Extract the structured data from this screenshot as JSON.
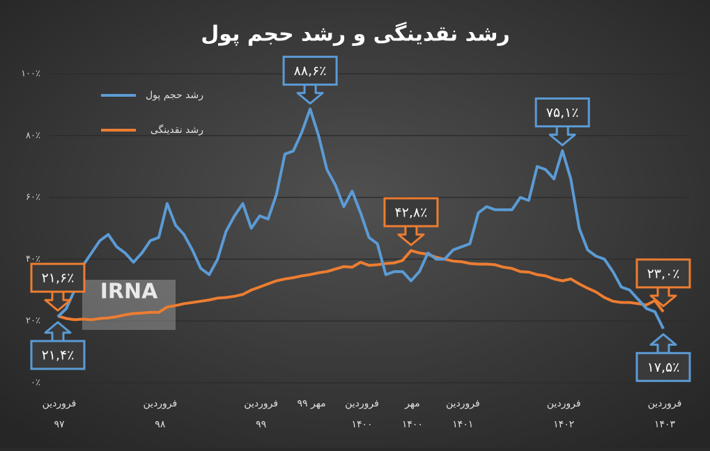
{
  "chart_data": {
    "type": "line",
    "title": "رشد نقدینگی و رشد حجم پول",
    "watermark": "IRNA",
    "categories": [
      "فروردین\n۹۷",
      null,
      null,
      null,
      null,
      null,
      null,
      null,
      null,
      null,
      null,
      null,
      "فروردین\n۹۸",
      null,
      null,
      null,
      null,
      null,
      null,
      null,
      null,
      null,
      null,
      null,
      "فروردین\n۹۹",
      null,
      null,
      null,
      null,
      null,
      "مهر ۹۹",
      null,
      null,
      null,
      null,
      null,
      "فروردین\n۱۴۰۰",
      null,
      null,
      null,
      null,
      null,
      "مهر\n۱۴۰۰",
      null,
      null,
      null,
      null,
      null,
      "فروردین\n۱۴۰۱",
      null,
      null,
      null,
      null,
      null,
      null,
      null,
      null,
      null,
      null,
      null,
      "فروردین\n۱۴۰۲",
      null,
      null,
      null,
      null,
      null,
      null,
      null,
      null,
      null,
      null,
      null,
      "فروردین\n۱۴۰۳"
    ],
    "series": [
      {
        "name": "رشد حجم پول",
        "color": "#5b9bd5",
        "values": [
          21.4,
          24,
          30,
          38,
          42,
          46,
          48,
          44,
          42,
          39,
          42,
          46,
          47,
          58,
          51,
          48,
          43,
          37,
          35,
          40,
          49,
          54,
          58,
          50,
          54,
          53,
          61,
          74,
          75,
          81,
          88.6,
          80,
          69,
          64,
          57,
          62,
          55,
          47,
          45,
          35,
          36,
          36,
          33,
          36,
          42,
          40,
          40,
          43,
          44,
          45,
          55,
          57,
          56,
          56,
          56,
          60,
          59,
          70,
          69,
          66,
          75.1,
          66,
          50,
          43,
          41,
          40,
          36,
          31,
          30,
          27,
          24,
          23,
          17.5
        ],
        "value_labels": [
          "۲۱,۴٪",
          null,
          null,
          null,
          null,
          null,
          null,
          null,
          null,
          null,
          null,
          null,
          null,
          null,
          null,
          null,
          null,
          null,
          null,
          null,
          null,
          null,
          null,
          null,
          null,
          null,
          null,
          null,
          null,
          null,
          "۸۸,۶٪",
          null,
          null,
          null,
          null,
          null,
          null,
          null,
          null,
          null,
          null,
          null,
          null,
          null,
          null,
          null,
          null,
          null,
          null,
          null,
          null,
          null,
          null,
          null,
          null,
          null,
          null,
          null,
          null,
          null,
          "۷۵,۱٪",
          null,
          null,
          null,
          null,
          null,
          null,
          null,
          null,
          null,
          null,
          null,
          "۱۷,۵٪"
        ]
      },
      {
        "name": "رشد نقدینگی",
        "color": "#ed7d31",
        "values": [
          21.6,
          20.8,
          20.4,
          20.6,
          20.4,
          20.8,
          21,
          21.4,
          22,
          22.4,
          22.6,
          22.8,
          22.8,
          24.5,
          25,
          25.6,
          26,
          26.4,
          26.8,
          27.4,
          27.6,
          28,
          28.6,
          30,
          31,
          32,
          33,
          33.6,
          34,
          34.6,
          35,
          35.6,
          36,
          36.8,
          37.6,
          37.4,
          39,
          38,
          38.2,
          38.6,
          38.8,
          39.6,
          42.8,
          42,
          41.6,
          40.6,
          40,
          39.4,
          39.2,
          38.6,
          38.4,
          38.4,
          38.2,
          37.4,
          37,
          36,
          35.8,
          35,
          34.6,
          33.6,
          33,
          33.6,
          32,
          30.6,
          29.4,
          27.6,
          26.4,
          26,
          26,
          25.6,
          25.2,
          26.6,
          23
        ],
        "value_labels": [
          "۲۱,۶٪",
          null,
          null,
          null,
          null,
          null,
          null,
          null,
          null,
          null,
          null,
          null,
          null,
          null,
          null,
          null,
          null,
          null,
          null,
          null,
          null,
          null,
          null,
          null,
          null,
          null,
          null,
          null,
          null,
          null,
          null,
          null,
          null,
          null,
          null,
          null,
          null,
          null,
          null,
          null,
          null,
          null,
          "۴۲,۸٪",
          null,
          null,
          null,
          null,
          null,
          null,
          null,
          null,
          null,
          null,
          null,
          null,
          null,
          null,
          null,
          null,
          null,
          null,
          null,
          null,
          null,
          null,
          null,
          null,
          null,
          null,
          null,
          null,
          null,
          "۲۳,۰٪"
        ]
      }
    ],
    "ylim": [
      0,
      100
    ],
    "yticks": [
      {
        "value": 0,
        "label": "۰٪"
      },
      {
        "value": 20,
        "label": "۲۰٪"
      },
      {
        "value": 40,
        "label": "۴۰٪"
      },
      {
        "value": 60,
        "label": "۶۰٪"
      },
      {
        "value": 80,
        "label": "۸۰٪"
      },
      {
        "value": 100,
        "label": "۱۰۰٪"
      }
    ],
    "grid": true
  }
}
